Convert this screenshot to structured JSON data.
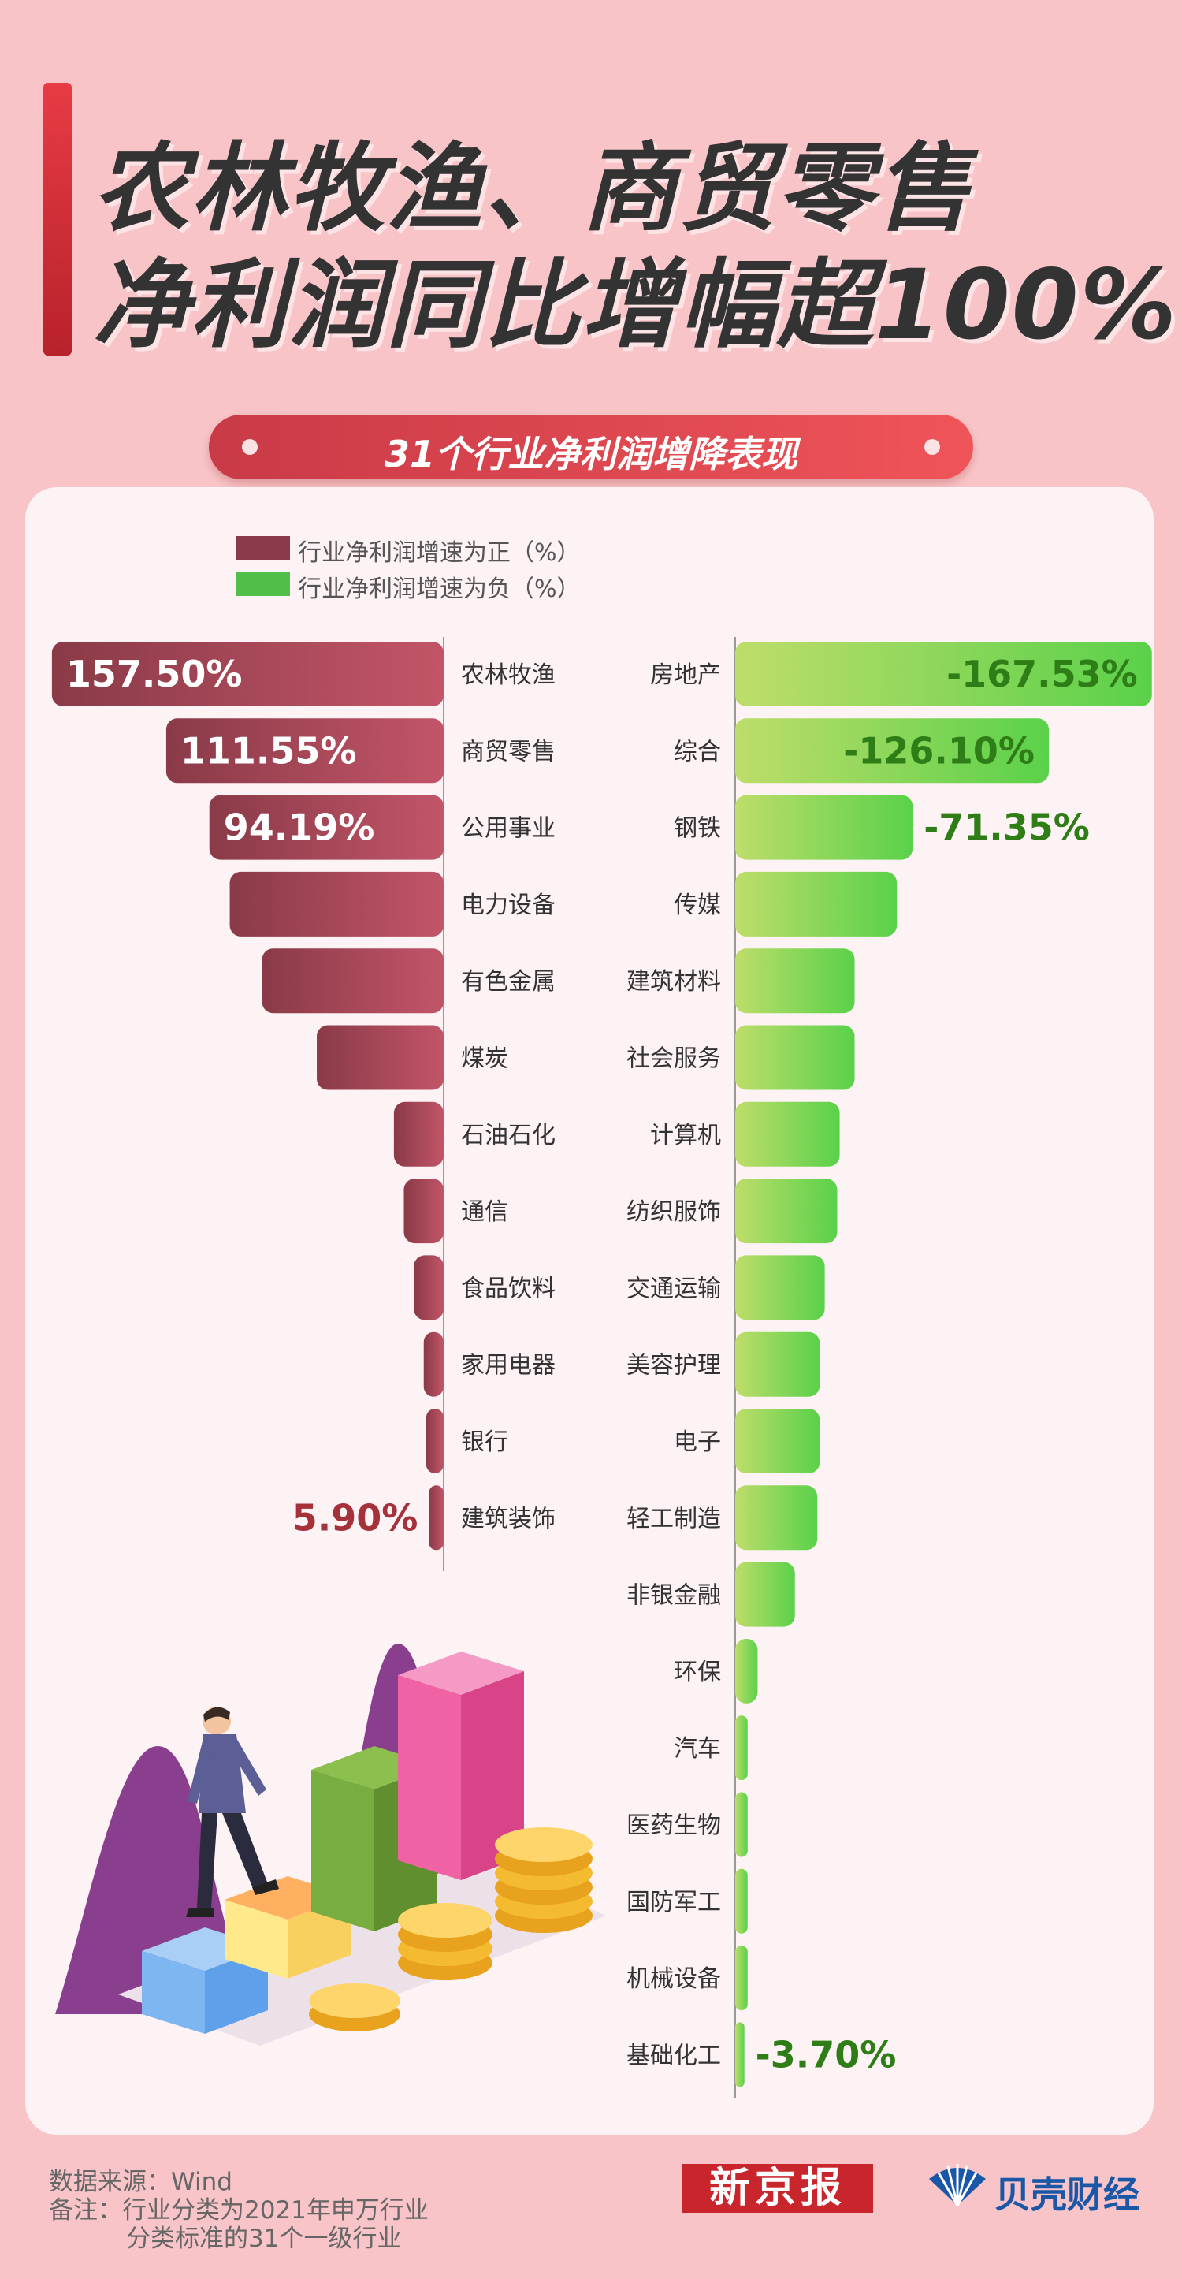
{
  "header": {
    "line1": "农林牧渔、商贸零售",
    "line2": "净利润同比增幅超100%",
    "subtitle": "31个行业净利润增降表现"
  },
  "legend": {
    "positive": "行业净利润增速为正（%）",
    "negative": "行业净利润增速为负（%）"
  },
  "footer": {
    "source": "数据来源：Wind",
    "note1": "备注：行业分类为2021年申万行业",
    "note2": "分类标准的31个一级行业"
  },
  "brands": {
    "left": "新京报",
    "right": "贝壳财经"
  },
  "colors": {
    "positive_dark": "#8a3a48",
    "positive_light": "#c25568",
    "negative_dark": "#5ad14a",
    "negative_light": "#bedd6a",
    "positive_label": "#a5313a",
    "negative_label": "#2e7d17"
  },
  "chart_data": {
    "type": "bar",
    "positive": {
      "name": "行业净利润增速为正（%）",
      "categories": [
        "农林牧渔",
        "商贸零售",
        "公用事业",
        "电力设备",
        "有色金属",
        "煤炭",
        "石油石化",
        "通信",
        "食品饮料",
        "家用电器",
        "银行",
        "建筑装饰"
      ],
      "values": [
        157.5,
        111.55,
        94.19,
        86,
        73,
        51,
        20,
        16,
        12,
        8,
        7,
        5.9
      ],
      "labels": [
        "157.50%",
        "111.55%",
        "94.19%",
        "",
        "",
        "",
        "",
        "",
        "",
        "",
        "",
        "5.90%"
      ]
    },
    "negative": {
      "name": "行业净利润增速为负（%）",
      "categories": [
        "房地产",
        "综合",
        "钢铁",
        "传媒",
        "建筑材料",
        "社会服务",
        "计算机",
        "纺织服饰",
        "交通运输",
        "美容护理",
        "电子",
        "轻工制造",
        "非银金融",
        "环保",
        "汽车",
        "医药生物",
        "国防军工",
        "机械设备",
        "基础化工"
      ],
      "values": [
        -167.53,
        -126.1,
        -71.35,
        -65,
        -48,
        -48,
        -42,
        -41,
        -36,
        -34,
        -34,
        -33,
        -24,
        -9,
        -5,
        -5,
        -5,
        -5,
        -3.7
      ],
      "labels": [
        "-167.53%",
        "-126.10%",
        "-71.35%",
        "",
        "",
        "",
        "",
        "",
        "",
        "",
        "",
        "",
        "",
        "",
        "",
        "",
        "",
        "",
        "-3.70%"
      ]
    }
  }
}
